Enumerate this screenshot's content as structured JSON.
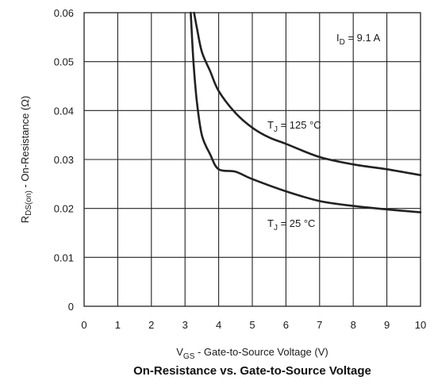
{
  "chart_data": {
    "type": "line",
    "title": "On-Resistance vs. Gate-to-Source Voltage",
    "xlabel": {
      "main": "V",
      "sub": "GS",
      "rest": " - Gate-to-Source Voltage (V)"
    },
    "ylabel": {
      "main": "R",
      "sub": "DS(on)",
      "rest": " - On-Resistance (Ω)"
    },
    "xlim": [
      0,
      10
    ],
    "ylim": [
      0,
      0.06
    ],
    "xticks": [
      "0",
      "1",
      "2",
      "3",
      "4",
      "5",
      "6",
      "7",
      "8",
      "9",
      "10"
    ],
    "yticks": [
      "0",
      "0.01",
      "0.02",
      "0.03",
      "0.04",
      "0.05",
      "0.06"
    ],
    "grid": true,
    "annotations": {
      "id": {
        "main": "I",
        "sub": "D",
        "rest": " = 9.1 A"
      },
      "tj125": {
        "main": "T",
        "sub": "J",
        "rest": " = 125 °C"
      },
      "tj25": {
        "main": "T",
        "sub": "J",
        "rest": " = 25 °C"
      }
    },
    "series": [
      {
        "x": [
          3.27,
          3.35,
          3.5,
          3.75,
          4.0,
          4.5,
          5.0,
          5.5,
          6.0,
          7.0,
          8.0,
          9.0,
          10.0
        ],
        "y": [
          0.06,
          0.057,
          0.052,
          0.048,
          0.044,
          0.0395,
          0.0365,
          0.0345,
          0.0332,
          0.0305,
          0.029,
          0.028,
          0.0268
        ]
      },
      {
        "x": [
          3.17,
          3.25,
          3.35,
          3.5,
          3.75,
          4.0,
          4.5,
          5.0,
          6.0,
          7.0,
          8.0,
          9.0,
          10.0
        ],
        "y": [
          0.06,
          0.05,
          0.042,
          0.035,
          0.031,
          0.028,
          0.0275,
          0.026,
          0.0235,
          0.0215,
          0.0205,
          0.0198,
          0.0192
        ]
      }
    ],
    "colors": {
      "line": "#222222",
      "grid": "#222222",
      "frame": "#222222"
    }
  }
}
